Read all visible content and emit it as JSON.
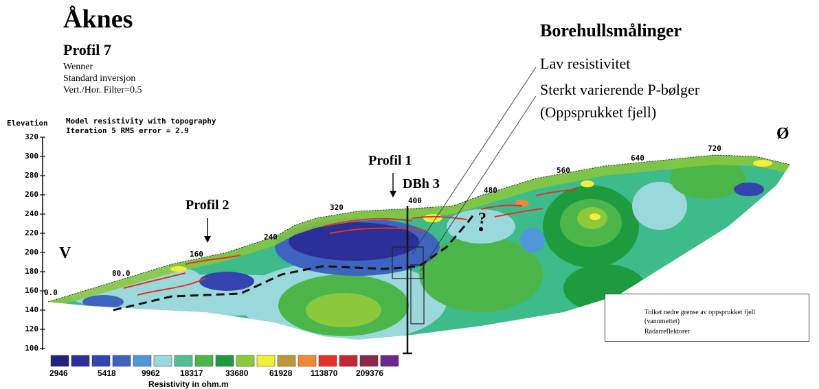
{
  "title": "Åknes",
  "profile_title": "Profil 7",
  "method_lines": [
    "Wenner",
    "Standard inversjon",
    "Vert./Hor. Filter=0.5"
  ],
  "borehole": {
    "title": "Borehullsmålinger",
    "lines": [
      "Lav resistivitet",
      "Sterkt varierende P-bølger",
      "(Oppsprukket fjell)"
    ]
  },
  "model": {
    "line1": "Model resistivity with topography",
    "line2": "Iteration 5 RMS error = 2.9",
    "elevation_label": "Elevation"
  },
  "y_ticks": [
    "320",
    "300",
    "280",
    "260",
    "240",
    "220",
    "200",
    "180",
    "160",
    "140",
    "120",
    "100"
  ],
  "x_ticks": [
    "0.0",
    "80.0",
    "160",
    "240",
    "320",
    "400",
    "480",
    "560",
    "640",
    "720"
  ],
  "annotations": {
    "profil2": "Profil 2",
    "profil1": "Profil 1",
    "dbh3": "DBh 3",
    "west": "V",
    "east": "Ø",
    "question": "?"
  },
  "legend": {
    "dashed": "Tolket nedre grense av oppsprukket fjell",
    "dashed_sub": "(vannmettet)",
    "red": "Radarreflektorer"
  },
  "colorbar": {
    "label": "Resistivity in ohm.m",
    "values": [
      "2946",
      "5418",
      "9962",
      "18317",
      "33680",
      "61928",
      "113870",
      "209376"
    ],
    "colors": [
      "#22237a",
      "#2b2f98",
      "#3444ae",
      "#3d65c0",
      "#4f97d8",
      "#9ad8dc",
      "#4fbf93",
      "#4cb64a",
      "#1e9a3f",
      "#8bc83c",
      "#f2ef3a",
      "#c0963a",
      "#ee8a35",
      "#e4322a",
      "#c42835",
      "#8a2a4a",
      "#6a2a8a"
    ]
  }
}
